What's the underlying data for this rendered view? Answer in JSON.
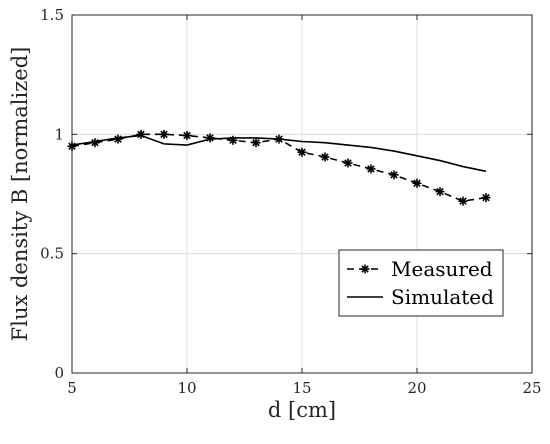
{
  "chart_data": {
    "type": "line",
    "xlabel": "d [cm]",
    "ylabel": "Flux density B [normalized]",
    "xlim": [
      5,
      25
    ],
    "ylim": [
      0,
      1.5
    ],
    "xticks": [
      5,
      10,
      15,
      20,
      25
    ],
    "yticks": [
      0,
      0.5,
      1,
      1.5
    ],
    "xtick_labels": [
      "5",
      "10",
      "15",
      "20",
      "25"
    ],
    "ytick_labels": [
      "0",
      "0.5",
      "1",
      "1.5"
    ],
    "grid": true,
    "legend_position": "bottom-right",
    "series": [
      {
        "name": "Measured",
        "style": "dashed-asterisk",
        "color": "#000000",
        "x": [
          5,
          6,
          7,
          8,
          9,
          10,
          11,
          12,
          13,
          14,
          15,
          16,
          17,
          18,
          19,
          20,
          21,
          22,
          23
        ],
        "y": [
          0.95,
          0.965,
          0.98,
          1.0,
          1.0,
          0.995,
          0.985,
          0.975,
          0.965,
          0.98,
          0.925,
          0.905,
          0.88,
          0.855,
          0.83,
          0.795,
          0.76,
          0.72,
          0.735
        ]
      },
      {
        "name": "Simulated",
        "style": "solid",
        "color": "#000000",
        "x": [
          5,
          6,
          7,
          8,
          9,
          10,
          11,
          12,
          13,
          14,
          15,
          16,
          17,
          18,
          19,
          20,
          21,
          22,
          23
        ],
        "y": [
          0.955,
          0.97,
          0.985,
          0.995,
          0.96,
          0.955,
          0.98,
          0.985,
          0.985,
          0.98,
          0.97,
          0.965,
          0.955,
          0.945,
          0.93,
          0.91,
          0.89,
          0.865,
          0.845
        ]
      }
    ]
  }
}
